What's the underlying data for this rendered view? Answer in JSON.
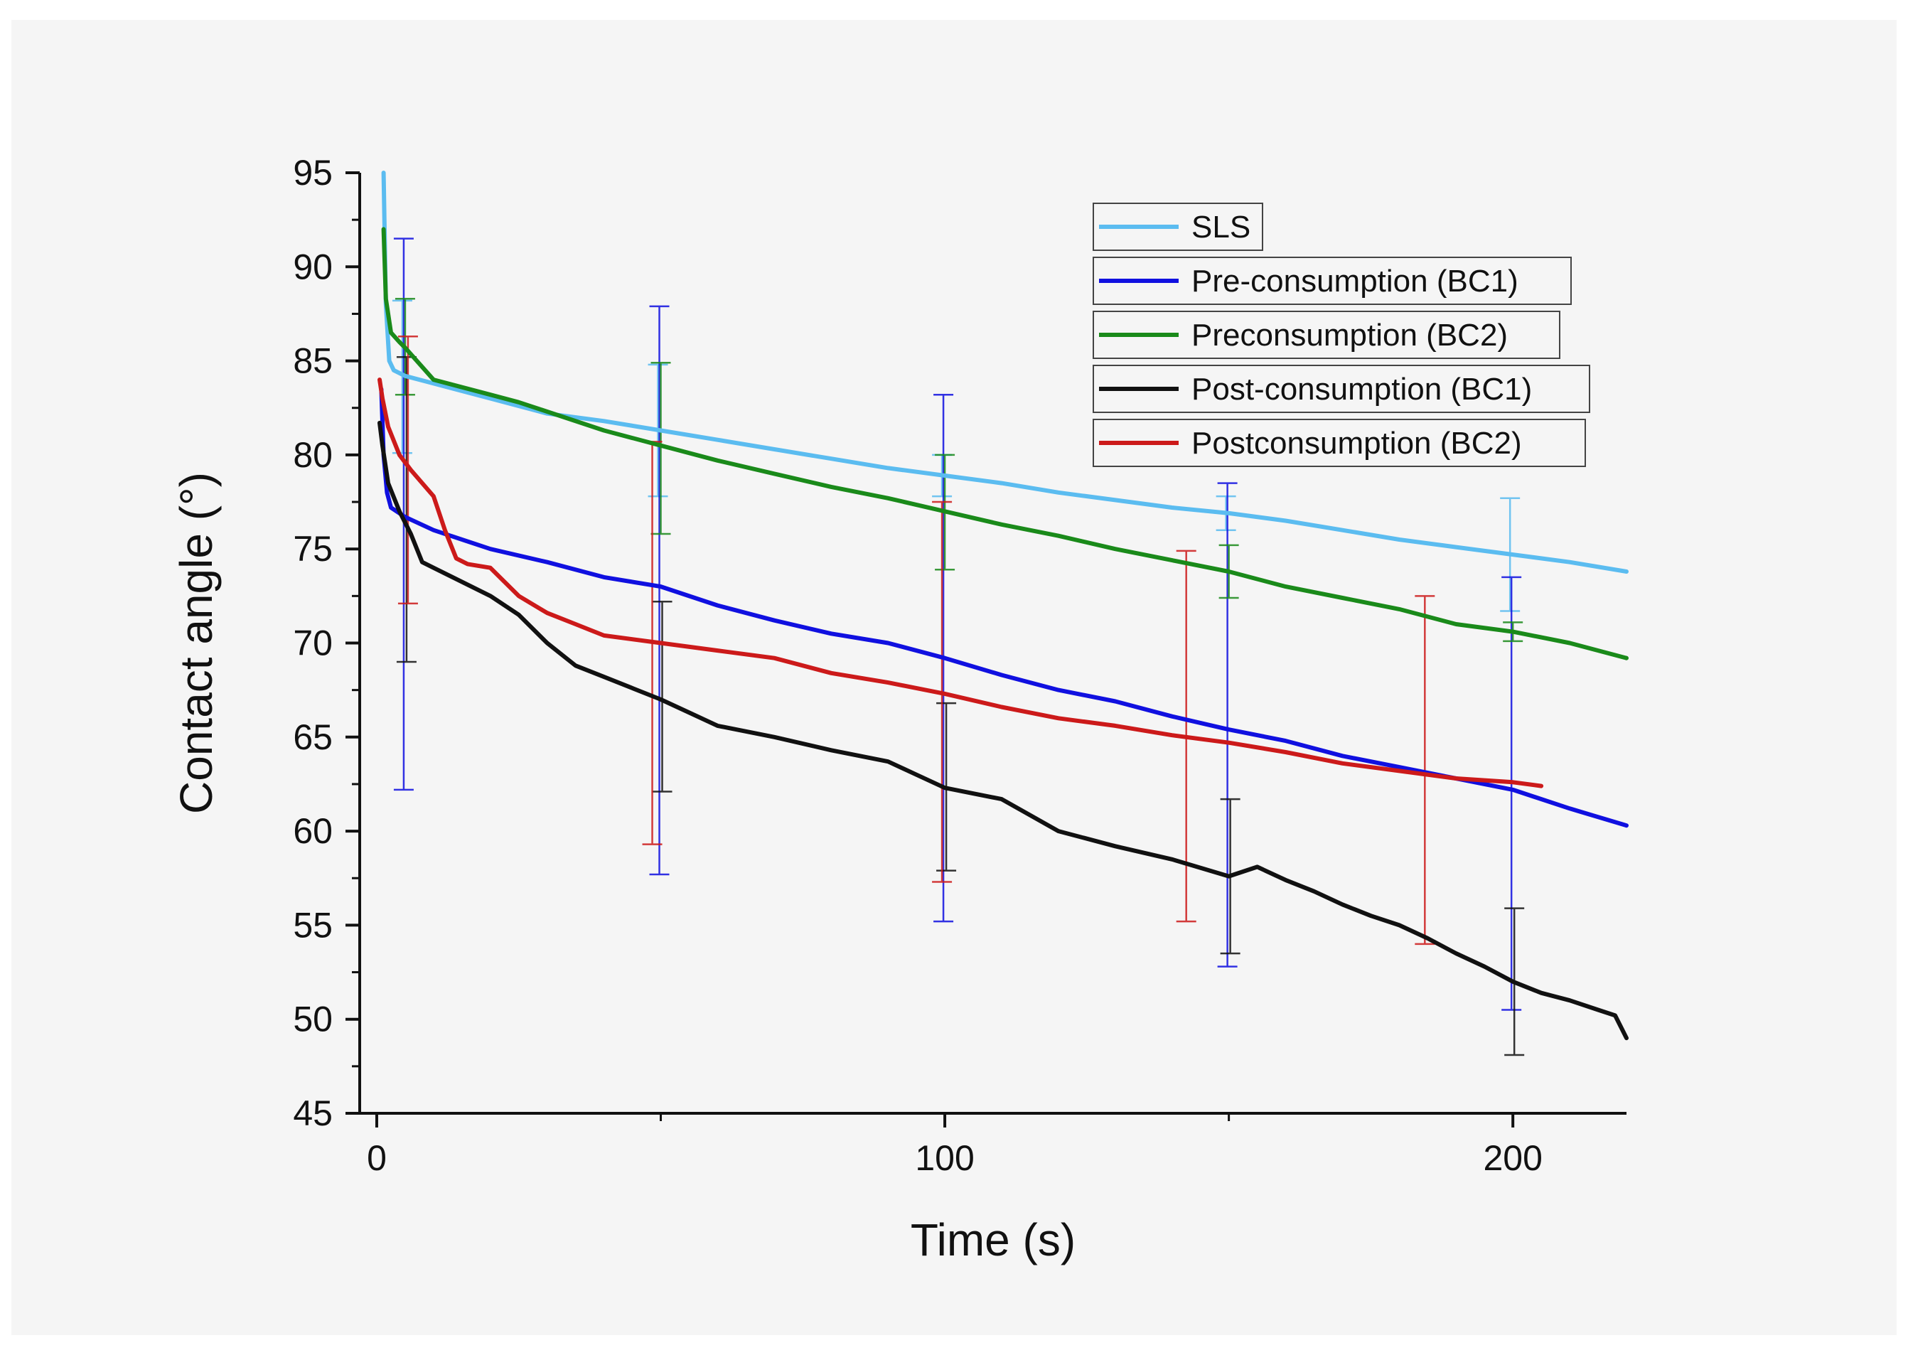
{
  "chart_data": {
    "type": "line",
    "title": "",
    "xlabel": "Time (s)",
    "ylabel": "Contact angle (°)",
    "xlim": [
      -3,
      220
    ],
    "ylim": [
      45,
      95
    ],
    "xticks": [
      0,
      100,
      200
    ],
    "xtick_labels": [
      "0",
      "100",
      "200"
    ],
    "yticks": [
      45,
      50,
      55,
      60,
      65,
      70,
      75,
      80,
      85,
      90,
      95
    ],
    "ytick_labels": [
      "45",
      "50",
      "55",
      "60",
      "65",
      "70",
      "75",
      "80",
      "85",
      "90",
      "95"
    ],
    "legend_position": "top-right",
    "series": [
      {
        "name": "SLS",
        "color": "#5bbcf0",
        "points": [
          [
            1.2,
            95
          ],
          [
            1.6,
            88
          ],
          [
            2.2,
            85
          ],
          [
            3,
            84.5
          ],
          [
            5,
            84.2
          ],
          [
            10,
            83.8
          ],
          [
            20,
            83.0
          ],
          [
            30,
            82.2
          ],
          [
            40,
            81.8
          ],
          [
            50,
            81.3
          ],
          [
            60,
            80.8
          ],
          [
            70,
            80.3
          ],
          [
            80,
            79.8
          ],
          [
            90,
            79.3
          ],
          [
            100,
            78.9
          ],
          [
            110,
            78.5
          ],
          [
            120,
            78.0
          ],
          [
            130,
            77.6
          ],
          [
            140,
            77.2
          ],
          [
            150,
            76.9
          ],
          [
            160,
            76.5
          ],
          [
            170,
            76.0
          ],
          [
            180,
            75.5
          ],
          [
            190,
            75.1
          ],
          [
            200,
            74.7
          ],
          [
            210,
            74.3
          ],
          [
            220,
            73.8
          ]
        ],
        "error_bars": [
          [
            5,
            84.2,
            80.1,
            88.2
          ],
          [
            50,
            81.3,
            77.8,
            84.8
          ],
          [
            100,
            78.9,
            77.8,
            80.0
          ],
          [
            150,
            76.9,
            76.0,
            77.8
          ],
          [
            200,
            74.7,
            71.7,
            77.7
          ]
        ]
      },
      {
        "name": "Pre-consumption (BC1)",
        "color": "#1010e0",
        "points": [
          [
            0.8,
            83.5
          ],
          [
            1.2,
            80
          ],
          [
            1.8,
            78
          ],
          [
            2.5,
            77.2
          ],
          [
            5,
            76.7
          ],
          [
            10,
            76.0
          ],
          [
            20,
            75.0
          ],
          [
            30,
            74.3
          ],
          [
            40,
            73.5
          ],
          [
            50,
            73.0
          ],
          [
            60,
            72.0
          ],
          [
            70,
            71.2
          ],
          [
            80,
            70.5
          ],
          [
            90,
            70.0
          ],
          [
            100,
            69.2
          ],
          [
            110,
            68.3
          ],
          [
            120,
            67.5
          ],
          [
            130,
            66.9
          ],
          [
            140,
            66.1
          ],
          [
            150,
            65.4
          ],
          [
            160,
            64.8
          ],
          [
            170,
            64.0
          ],
          [
            180,
            63.4
          ],
          [
            190,
            62.8
          ],
          [
            200,
            62.2
          ],
          [
            210,
            61.2
          ],
          [
            220,
            60.3
          ]
        ],
        "error_bars": [
          [
            5,
            76.7,
            62.2,
            91.5
          ],
          [
            50,
            73.0,
            57.7,
            87.9
          ],
          [
            100,
            69.2,
            55.2,
            83.2
          ],
          [
            150,
            65.4,
            52.8,
            78.5
          ],
          [
            200,
            62.2,
            50.5,
            73.5
          ]
        ]
      },
      {
        "name": "Preconsumption (BC2)",
        "color": "#1a8a1a",
        "points": [
          [
            1.2,
            92
          ],
          [
            1.6,
            88.3
          ],
          [
            2.5,
            86.5
          ],
          [
            4,
            86.0
          ],
          [
            5,
            85.7
          ],
          [
            10,
            84.0
          ],
          [
            20,
            83.2
          ],
          [
            25,
            82.8
          ],
          [
            30,
            82.3
          ],
          [
            40,
            81.3
          ],
          [
            50,
            80.5
          ],
          [
            60,
            79.7
          ],
          [
            70,
            79.0
          ],
          [
            80,
            78.3
          ],
          [
            90,
            77.7
          ],
          [
            100,
            77.0
          ],
          [
            110,
            76.3
          ],
          [
            120,
            75.7
          ],
          [
            130,
            75.0
          ],
          [
            140,
            74.4
          ],
          [
            150,
            73.8
          ],
          [
            160,
            73.0
          ],
          [
            170,
            72.4
          ],
          [
            180,
            71.8
          ],
          [
            190,
            71.0
          ],
          [
            200,
            70.6
          ],
          [
            210,
            70.0
          ],
          [
            220,
            69.2
          ]
        ],
        "error_bars": [
          [
            5,
            85.7,
            83.2,
            88.3
          ],
          [
            50,
            80.5,
            75.8,
            84.9
          ],
          [
            100,
            77.0,
            73.9,
            80.0
          ],
          [
            150,
            73.8,
            72.4,
            75.2
          ],
          [
            200,
            70.6,
            70.1,
            71.1
          ]
        ]
      },
      {
        "name": "Post-consumption (BC1)",
        "color": "#111111",
        "points": [
          [
            0.5,
            81.7
          ],
          [
            1,
            80.5
          ],
          [
            2,
            78.5
          ],
          [
            4,
            77.0
          ],
          [
            6,
            75.8
          ],
          [
            8,
            74.3
          ],
          [
            10,
            74.0
          ],
          [
            20,
            72.5
          ],
          [
            25,
            71.5
          ],
          [
            30,
            70.0
          ],
          [
            35,
            68.8
          ],
          [
            40,
            68.2
          ],
          [
            45,
            67.6
          ],
          [
            50,
            67.0
          ],
          [
            55,
            66.3
          ],
          [
            60,
            65.6
          ],
          [
            70,
            65.0
          ],
          [
            80,
            64.3
          ],
          [
            90,
            63.7
          ],
          [
            95,
            63.0
          ],
          [
            100,
            62.3
          ],
          [
            110,
            61.7
          ],
          [
            120,
            60.0
          ],
          [
            130,
            59.2
          ],
          [
            140,
            58.5
          ],
          [
            150,
            57.6
          ],
          [
            155,
            58.1
          ],
          [
            160,
            57.4
          ],
          [
            165,
            56.8
          ],
          [
            170,
            56.1
          ],
          [
            175,
            55.5
          ],
          [
            180,
            55.0
          ],
          [
            185,
            54.3
          ],
          [
            190,
            53.5
          ],
          [
            195,
            52.8
          ],
          [
            200,
            52.0
          ],
          [
            205,
            51.4
          ],
          [
            210,
            51.0
          ],
          [
            215,
            50.5
          ],
          [
            218,
            50.2
          ],
          [
            220,
            49.0
          ]
        ],
        "error_bars": [
          [
            5,
            77.0,
            69.0,
            85.2
          ],
          [
            50,
            67.0,
            62.1,
            72.2
          ],
          [
            100,
            62.3,
            57.9,
            66.8
          ],
          [
            150,
            57.6,
            53.5,
            61.7
          ],
          [
            200,
            52.0,
            48.1,
            55.9
          ]
        ]
      },
      {
        "name": "Postconsumption (BC2)",
        "color": "#cc1a1a",
        "points": [
          [
            0.5,
            84.0
          ],
          [
            1,
            83.0
          ],
          [
            2,
            81.5
          ],
          [
            4,
            80.0
          ],
          [
            6,
            79.2
          ],
          [
            8,
            78.5
          ],
          [
            10,
            77.8
          ],
          [
            12,
            76.0
          ],
          [
            14,
            74.5
          ],
          [
            16,
            74.2
          ],
          [
            20,
            74.0
          ],
          [
            25,
            72.5
          ],
          [
            30,
            71.6
          ],
          [
            35,
            71.0
          ],
          [
            40,
            70.4
          ],
          [
            50,
            70.0
          ],
          [
            60,
            69.6
          ],
          [
            70,
            69.2
          ],
          [
            80,
            68.4
          ],
          [
            90,
            67.9
          ],
          [
            100,
            67.3
          ],
          [
            110,
            66.6
          ],
          [
            120,
            66.0
          ],
          [
            130,
            65.6
          ],
          [
            140,
            65.1
          ],
          [
            150,
            64.7
          ],
          [
            160,
            64.2
          ],
          [
            170,
            63.6
          ],
          [
            180,
            63.2
          ],
          [
            190,
            62.8
          ],
          [
            200,
            62.6
          ],
          [
            205,
            62.4
          ]
        ],
        "error_bars": [
          [
            5,
            79.2,
            72.1,
            86.3
          ],
          [
            48,
            70.0,
            59.3,
            80.7
          ],
          [
            99,
            67.3,
            57.3,
            77.5
          ],
          [
            142,
            65.1,
            55.2,
            74.9
          ],
          [
            184,
            63.2,
            54.0,
            72.5
          ]
        ]
      }
    ]
  }
}
